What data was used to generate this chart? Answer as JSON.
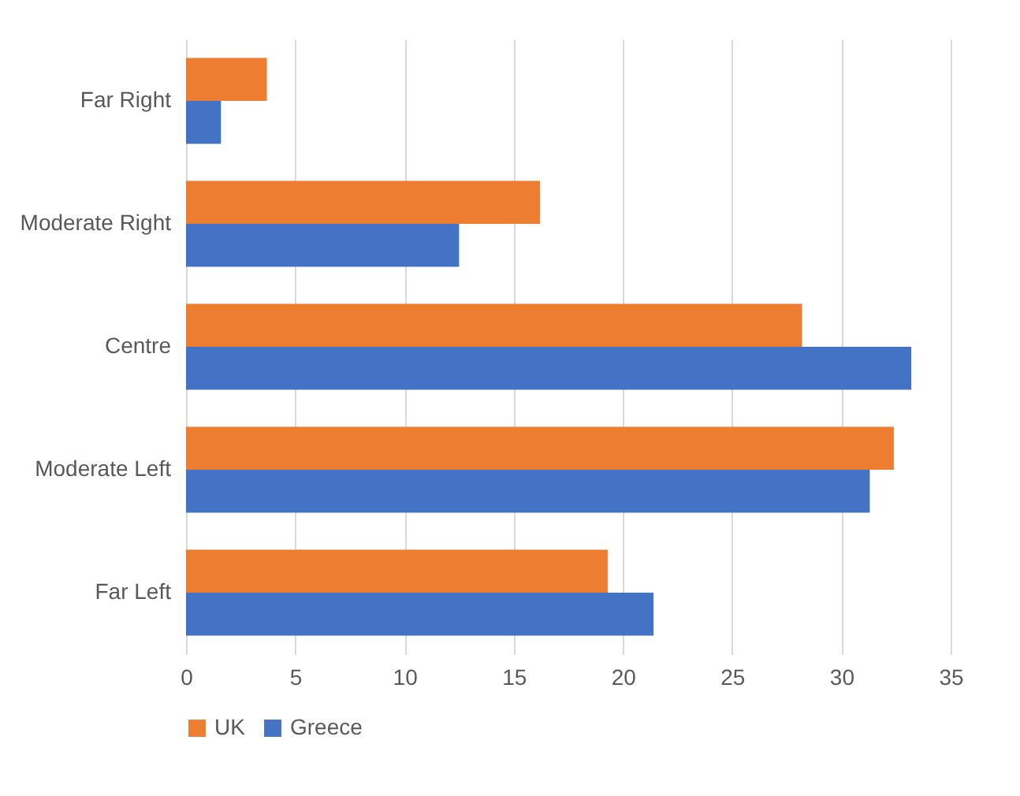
{
  "chart_data": {
    "type": "bar",
    "orientation": "horizontal",
    "categories": [
      "Far Right",
      "Moderate Right",
      "Centre",
      "Moderate Left",
      "Far Left"
    ],
    "series": [
      {
        "name": "UK",
        "color": "#ed7d31",
        "values": [
          3.7,
          16.2,
          28.2,
          32.4,
          19.3
        ]
      },
      {
        "name": "Greece",
        "color": "#4472c4",
        "values": [
          1.6,
          12.5,
          33.2,
          31.3,
          21.4
        ]
      }
    ],
    "xlim": [
      0,
      35
    ],
    "xticks": [
      0,
      5,
      10,
      15,
      20,
      25,
      30,
      35
    ],
    "grid": "x",
    "legend": "bottom"
  }
}
